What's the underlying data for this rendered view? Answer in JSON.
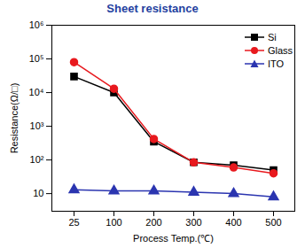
{
  "chart_data": {
    "type": "line",
    "title": "Sheet resistance",
    "x_label": "Process Temp.(℃)",
    "y_label": "Resistance(Ω/□)",
    "categories": [
      "25",
      "100",
      "200",
      "300",
      "400",
      "500"
    ],
    "series": [
      {
        "name": "Si",
        "color": "#000000",
        "marker": "square",
        "values": [
          30000,
          10000,
          350,
          85,
          70,
          50
        ]
      },
      {
        "name": "Glass",
        "color": "#e8191e",
        "marker": "circle",
        "values": [
          80000,
          13000,
          420,
          85,
          60,
          40
        ]
      },
      {
        "name": "ITO",
        "color": "#2b35b0",
        "marker": "triangle",
        "values": [
          13,
          12,
          12,
          11,
          10,
          8
        ]
      }
    ],
    "log": "y",
    "ylim": [
      3,
      1000000
    ],
    "yticks": [
      10,
      {
        "value": 100,
        "label": "10²"
      },
      {
        "value": 1000,
        "label": "10³"
      },
      {
        "value": 10000,
        "label": "10⁴"
      },
      {
        "value": 100000,
        "label": "10⁵"
      },
      {
        "value": 1000000,
        "label": "10⁶"
      }
    ],
    "grid": false,
    "legend": "upper right"
  }
}
